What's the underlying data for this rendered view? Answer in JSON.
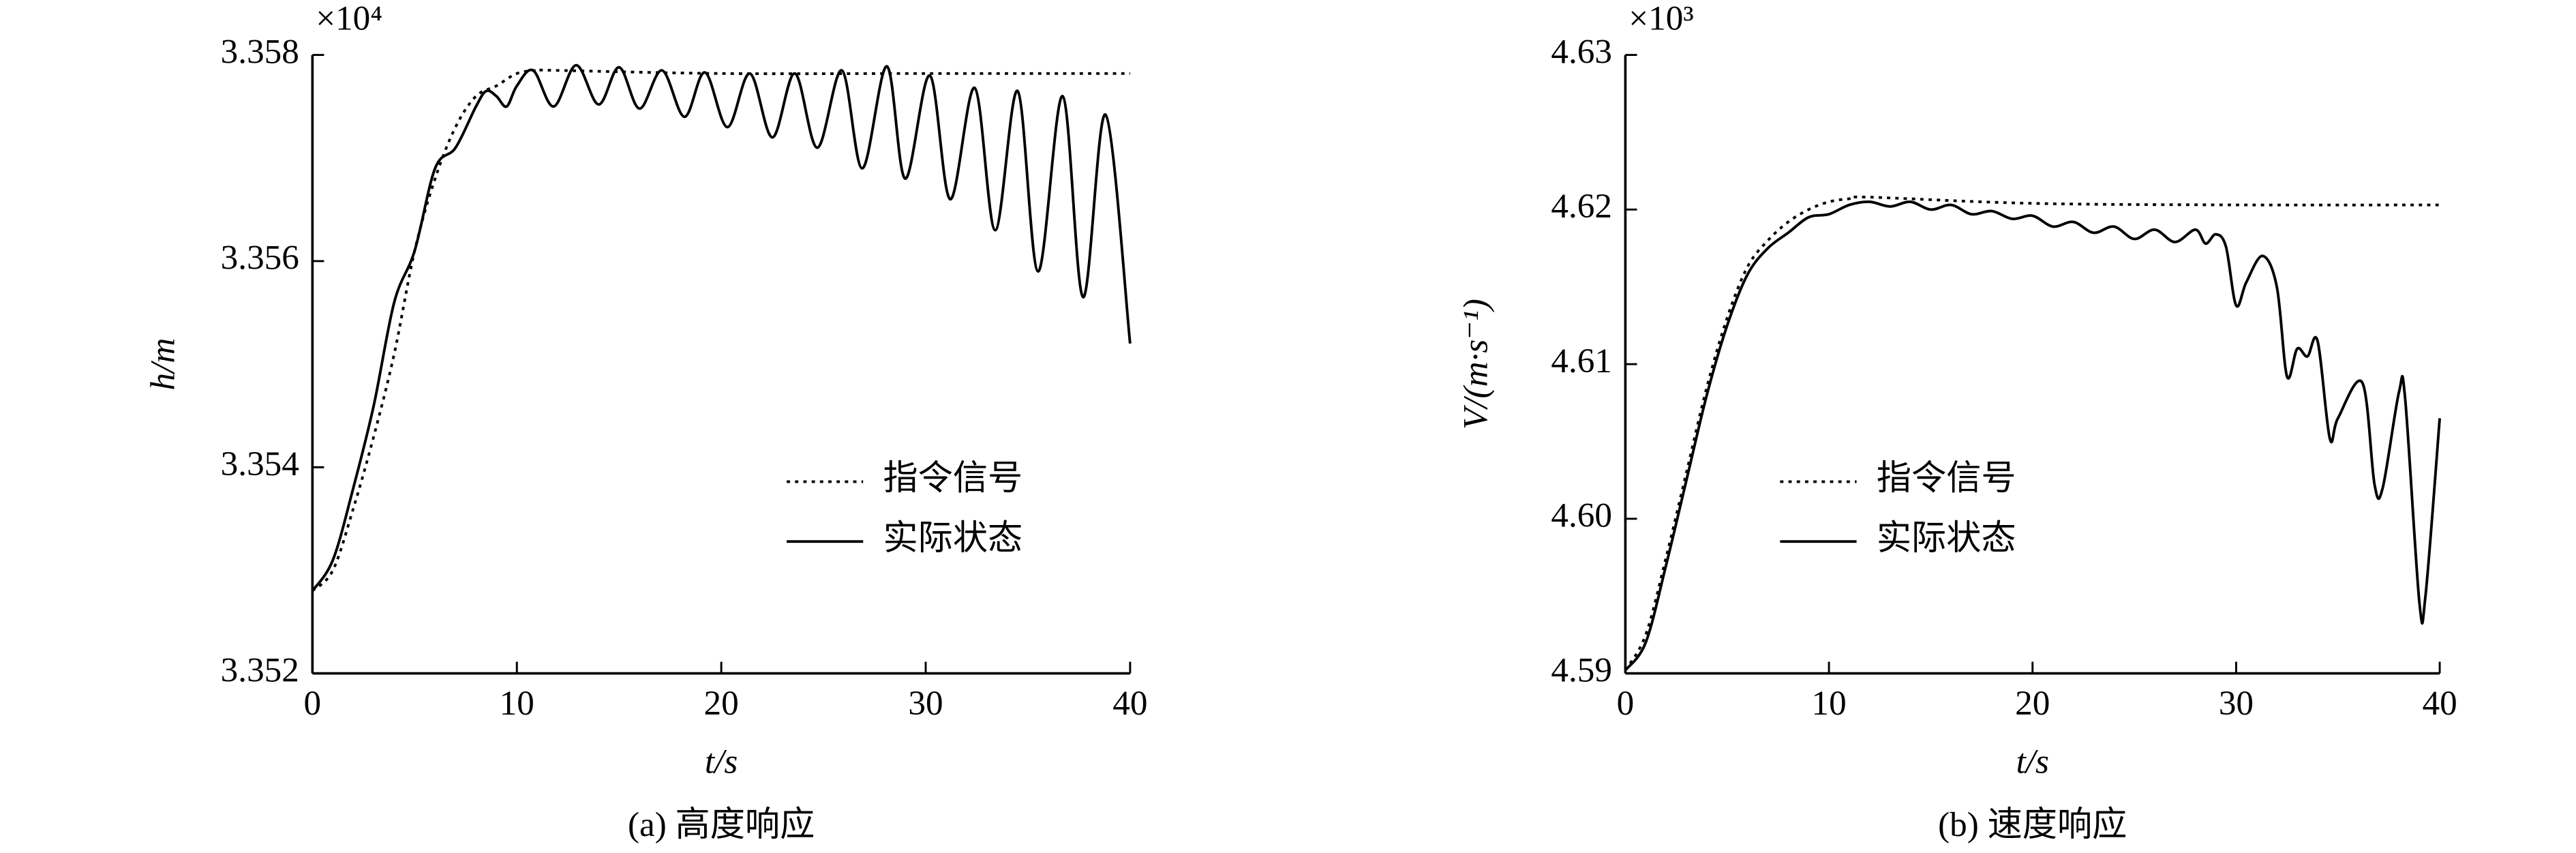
{
  "chart_data": [
    {
      "type": "line",
      "xlabel": "t/s",
      "ylabel": "h/m",
      "y_multiplier": "×10⁴",
      "caption": "(a) 高度响应",
      "xlim": [
        0,
        40
      ],
      "ylim": [
        3.352,
        3.358
      ],
      "xticks": [
        0,
        10,
        20,
        30,
        40
      ],
      "yticks": [
        3.352,
        3.354,
        3.356,
        3.358
      ],
      "legend": "center right",
      "series": [
        {
          "name": "指令信号",
          "color": "#000000",
          "line_style": "dotted",
          "x": [
            0,
            1,
            2,
            3,
            4,
            5,
            6,
            7,
            8,
            9,
            10,
            11,
            12,
            20,
            30,
            40
          ],
          "values": [
            3.3528,
            3.353,
            3.3536,
            3.3543,
            3.3551,
            3.3561,
            3.3568,
            3.3573,
            3.3576,
            3.3577,
            3.35782,
            3.35785,
            3.35785,
            3.35782,
            3.35782,
            3.35782
          ]
        },
        {
          "name": "实际状态",
          "color": "#000000",
          "line_style": "solid",
          "x": [
            0,
            1,
            2,
            3,
            4,
            5,
            6,
            7,
            8,
            8.5,
            9,
            9.5,
            10,
            10.8,
            11.8,
            12.9,
            14,
            15,
            16,
            17.1,
            18.2,
            19.2,
            20.3,
            21.4,
            22.5,
            23.6,
            24.7,
            25.9,
            26.9,
            28.1,
            29,
            30.2,
            31.2,
            32.4,
            33.4,
            34.5,
            35.5,
            36.7,
            37.7,
            38.8,
            40
          ],
          "values": [
            3.3528,
            3.3531,
            3.3538,
            3.3546,
            3.3556,
            3.3561,
            3.3569,
            3.3571,
            3.3575,
            3.35765,
            3.3576,
            3.3575,
            3.3577,
            3.35785,
            3.3575,
            3.3579,
            3.35752,
            3.35788,
            3.35748,
            3.35785,
            3.3574,
            3.35783,
            3.3573,
            3.35782,
            3.3572,
            3.35782,
            3.3571,
            3.35785,
            3.3569,
            3.35789,
            3.3568,
            3.3578,
            3.3566,
            3.35768,
            3.3563,
            3.35765,
            3.3559,
            3.3576,
            3.35565,
            3.35742,
            3.3552
          ]
        }
      ]
    },
    {
      "type": "line",
      "xlabel": "t/s",
      "ylabel": "V/(m·s⁻¹)",
      "y_multiplier": "×10³",
      "caption": "(b) 速度响应",
      "xlim": [
        0,
        40
      ],
      "ylim": [
        4.59,
        4.63
      ],
      "xticks": [
        0,
        10,
        20,
        30,
        40
      ],
      "yticks": [
        4.59,
        {
          "value": 4.6,
          "label": "4.60"
        },
        4.61,
        4.62,
        4.63
      ],
      "legend": "center left",
      "series": [
        {
          "name": "指令信号",
          "color": "#000000",
          "line_style": "dotted",
          "x": [
            0,
            1,
            2,
            3,
            4,
            5,
            6,
            7,
            8,
            9,
            10,
            11,
            12,
            20,
            30,
            40
          ],
          "values": [
            4.5902,
            4.5925,
            4.5975,
            4.603,
            4.6085,
            4.613,
            4.6163,
            4.618,
            4.6192,
            4.62,
            4.6205,
            4.6207,
            4.6208,
            4.6204,
            4.6203,
            4.6203
          ]
        },
        {
          "name": "实际状态",
          "color": "#000000",
          "line_style": "solid",
          "x": [
            0,
            1,
            2,
            3,
            4,
            5,
            6,
            7,
            8,
            9,
            10,
            11,
            12,
            13,
            14,
            15,
            16,
            17,
            18,
            19,
            20,
            21,
            22,
            23,
            24,
            25,
            26,
            27,
            28,
            28.5,
            29,
            29.5,
            30,
            30.5,
            31.3,
            32,
            32.5,
            33,
            33.5,
            34,
            34.6,
            35,
            36.2,
            36.8,
            37.2,
            38,
            38.3,
            39,
            39.3,
            40
          ],
          "values": [
            4.5902,
            4.592,
            4.597,
            4.6025,
            4.608,
            4.6125,
            4.6158,
            4.6175,
            4.6185,
            4.6195,
            4.6197,
            4.6203,
            4.6205,
            4.6202,
            4.6205,
            4.62,
            4.6203,
            4.6197,
            4.6199,
            4.6194,
            4.6196,
            4.6189,
            4.6192,
            4.6185,
            4.6189,
            4.6181,
            4.6187,
            4.6179,
            4.6187,
            4.6178,
            4.6184,
            4.6176,
            4.6138,
            4.6153,
            4.617,
            4.615,
            4.6092,
            4.611,
            4.6105,
            4.6115,
            4.6052,
            4.6065,
            4.6088,
            4.6022,
            4.602,
            4.6082,
            4.6078,
            4.5946,
            4.595,
            4.6065
          ]
        }
      ]
    }
  ]
}
